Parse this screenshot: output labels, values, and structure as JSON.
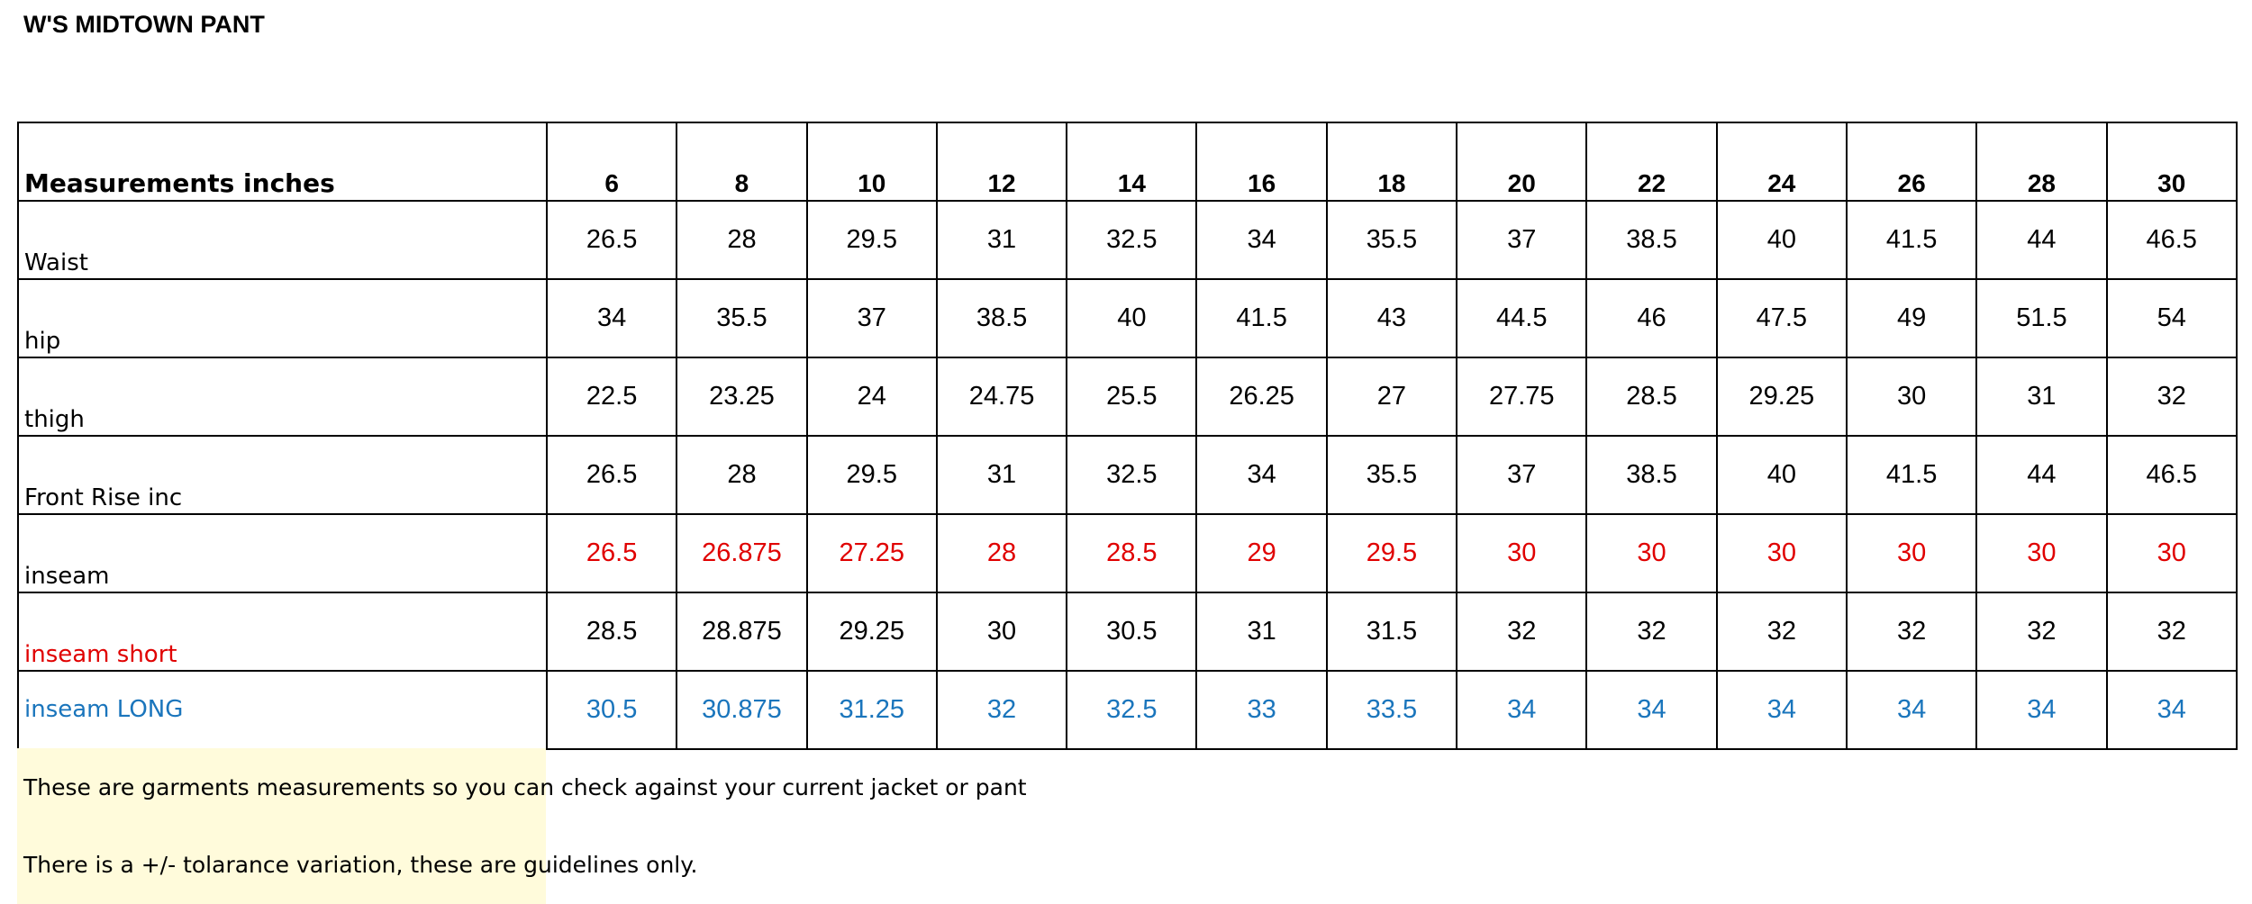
{
  "header": {
    "title": "W'S MIDTOWN PANT"
  },
  "table": {
    "header": [
      "Measurements inches",
      6,
      8,
      10,
      12,
      14,
      16,
      18,
      20,
      22,
      24,
      26,
      28,
      30
    ],
    "rows": [
      [
        "Waist",
        26.5,
        28,
        29.5,
        31,
        32.5,
        34,
        35.5,
        37,
        38.5,
        40,
        41.5,
        44,
        46.5
      ],
      [
        "hip",
        34,
        35.5,
        37,
        38.5,
        40,
        41.5,
        43,
        44.5,
        46,
        47.5,
        49,
        51.5,
        54
      ],
      [
        "thigh",
        22.5,
        23.25,
        24,
        24.75,
        25.5,
        26.25,
        27,
        27.75,
        28.5,
        29.25,
        30,
        31,
        32
      ],
      [
        "Front Rise inc",
        26.5,
        28,
        29.5,
        31,
        32.5,
        34,
        35.5,
        37,
        38.5,
        40,
        41.5,
        44,
        46.5
      ],
      [
        "inseam",
        26.5,
        26.875,
        27.25,
        28,
        28.5,
        29,
        29.5,
        30,
        30,
        30,
        30,
        30,
        30
      ],
      [
        "inseam short",
        28.5,
        28.875,
        29.25,
        30,
        30.5,
        31,
        31.5,
        32,
        32,
        32,
        32,
        32,
        32
      ],
      [
        "inseam LONG",
        30.5,
        30.875,
        31.25,
        32,
        32.5,
        33,
        33.5,
        34,
        34,
        34,
        34,
        34,
        34
      ]
    ]
  },
  "notes": [
    "These are garments measurements so you can check against your current jacket or pant",
    "There is a +/- tolarance variation, these are guidelines only."
  ]
}
